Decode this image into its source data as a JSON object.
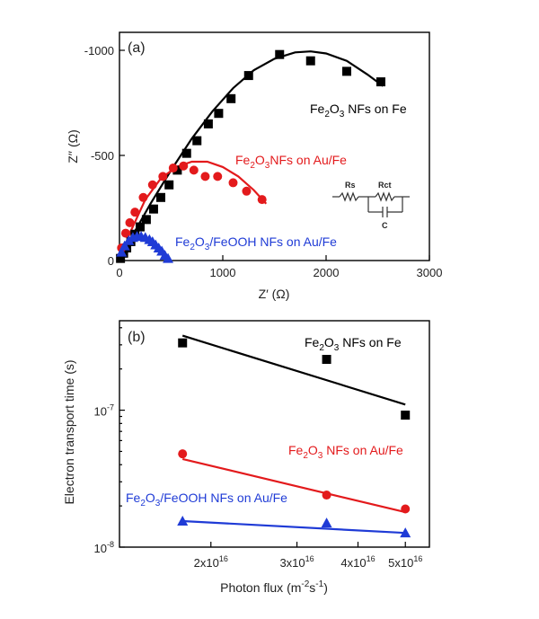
{
  "chart_data": [
    {
      "type": "scatter",
      "panel_label": "(a)",
      "xlabel": "Z′ (Ω)",
      "ylabel": "Z′′ (Ω)",
      "xlim": [
        0,
        3000
      ],
      "ylim": [
        0,
        -1000
      ],
      "x_ticks": [
        "0",
        "1000",
        "2000",
        "3000"
      ],
      "y_ticks": [
        "0",
        "-500",
        "-1000"
      ],
      "grid": false,
      "series": [
        {
          "name": "Fe2O3 NFs on Fe",
          "label_parts": {
            "a": "Fe",
            "sub": "2",
            "b": "O",
            "sub2": "3",
            "c": " NFs on Fe"
          },
          "color": "#000000",
          "marker": "square",
          "points": [
            [
              10,
              -10
            ],
            [
              40,
              -35
            ],
            [
              70,
              -60
            ],
            [
              110,
              -90
            ],
            [
              150,
              -125
            ],
            [
              200,
              -160
            ],
            [
              260,
              -195
            ],
            [
              330,
              -245
            ],
            [
              400,
              -300
            ],
            [
              480,
              -360
            ],
            [
              560,
              -430
            ],
            [
              650,
              -510
            ],
            [
              750,
              -570
            ],
            [
              860,
              -650
            ],
            [
              960,
              -700
            ],
            [
              1080,
              -770
            ],
            [
              1250,
              -880
            ],
            [
              1550,
              -980
            ],
            [
              1850,
              -950
            ],
            [
              2200,
              -900
            ],
            [
              2530,
              -850
            ]
          ],
          "fit": [
            [
              0,
              0
            ],
            [
              150,
              -140
            ],
            [
              300,
              -270
            ],
            [
              500,
              -430
            ],
            [
              700,
              -580
            ],
            [
              900,
              -710
            ],
            [
              1100,
              -820
            ],
            [
              1300,
              -905
            ],
            [
              1500,
              -960
            ],
            [
              1700,
              -990
            ],
            [
              1850,
              -995
            ],
            [
              2000,
              -985
            ],
            [
              2200,
              -950
            ],
            [
              2400,
              -885
            ],
            [
              2550,
              -830
            ]
          ]
        },
        {
          "name": "Fe2O3NFs on Au/Fe",
          "label_parts": {
            "a": "Fe",
            "sub": "2",
            "b": "O",
            "sub2": "3",
            "c": "NFs on Au/Fe"
          },
          "color": "#e31a1c",
          "marker": "circle",
          "points": [
            [
              20,
              -60
            ],
            [
              60,
              -130
            ],
            [
              100,
              -180
            ],
            [
              150,
              -230
            ],
            [
              230,
              -300
            ],
            [
              320,
              -360
            ],
            [
              420,
              -400
            ],
            [
              520,
              -440
            ],
            [
              620,
              -450
            ],
            [
              720,
              -430
            ],
            [
              830,
              -400
            ],
            [
              950,
              -400
            ],
            [
              1100,
              -370
            ],
            [
              1230,
              -330
            ],
            [
              1380,
              -290
            ]
          ],
          "fit": [
            [
              0,
              0
            ],
            [
              100,
              -130
            ],
            [
              250,
              -290
            ],
            [
              400,
              -390
            ],
            [
              550,
              -445
            ],
            [
              700,
              -470
            ],
            [
              850,
              -470
            ],
            [
              1000,
              -445
            ],
            [
              1150,
              -400
            ],
            [
              1300,
              -335
            ],
            [
              1420,
              -270
            ]
          ]
        },
        {
          "name": "Fe2O3/FeOOH NFs on Au/Fe",
          "label_parts": {
            "a": "Fe",
            "sub": "2",
            "b": "O",
            "sub2": "3",
            "c": "/FeOOH NFs on Au/Fe"
          },
          "color": "#1f3bd6",
          "marker": "triangle",
          "points": [
            [
              20,
              -40
            ],
            [
              50,
              -70
            ],
            [
              90,
              -95
            ],
            [
              130,
              -110
            ],
            [
              170,
              -115
            ],
            [
              210,
              -115
            ],
            [
              250,
              -110
            ],
            [
              290,
              -100
            ],
            [
              320,
              -90
            ],
            [
              350,
              -75
            ],
            [
              380,
              -60
            ],
            [
              410,
              -45
            ],
            [
              440,
              -25
            ],
            [
              470,
              -10
            ]
          ],
          "fit": [
            [
              0,
              0
            ],
            [
              60,
              -60
            ],
            [
              120,
              -95
            ],
            [
              180,
              -110
            ],
            [
              240,
              -112
            ],
            [
              300,
              -100
            ],
            [
              360,
              -75
            ],
            [
              420,
              -40
            ],
            [
              480,
              0
            ]
          ]
        }
      ],
      "circuit": {
        "rs": "Rs",
        "rct": "Rct",
        "c": "C"
      }
    },
    {
      "type": "scatter",
      "panel_label": "(b)",
      "xlabel_parts": {
        "a": "Photon flux (m",
        "sup1": "-2",
        "b": "s",
        "sup2": "-1",
        "c": ")"
      },
      "ylabel": "Electron transport time (s)",
      "xscale": "log",
      "yscale": "log",
      "xlim": [
        1.3e+16,
        5.6e+16
      ],
      "ylim": [
        1e-08,
        4.5e-07
      ],
      "x_ticks": [
        {
          "value": 2e+16,
          "mant": "2x10",
          "exp": "16"
        },
        {
          "value": 3e+16,
          "mant": "3x10",
          "exp": "16"
        },
        {
          "value": 4e+16,
          "mant": "4x10",
          "exp": "16"
        },
        {
          "value": 5e+16,
          "mant": "5x10",
          "exp": "16"
        }
      ],
      "y_ticks": [
        {
          "value": 1e-08,
          "mant": "10",
          "exp": "-8"
        },
        {
          "value": 1e-07,
          "mant": "10",
          "exp": "-7"
        }
      ],
      "grid": false,
      "series": [
        {
          "name": "Fe2O3 NFs on Fe",
          "label_parts": {
            "a": "Fe",
            "sub": "2",
            "b": "O",
            "sub2": "3",
            "c": " NFs on Fe"
          },
          "color": "#000000",
          "marker": "square",
          "points": [
            [
              1.75e+16,
              3.1e-07
            ],
            [
              3.45e+16,
              2.35e-07
            ],
            [
              5e+16,
              9.2e-08
            ]
          ],
          "fit": [
            [
              1.75e+16,
              3.5e-07
            ],
            [
              5e+16,
              1.1e-07
            ]
          ]
        },
        {
          "name": "Fe2O3 NFs on Au/Fe",
          "label_parts": {
            "a": "Fe",
            "sub": "2",
            "b": "O",
            "sub2": "3",
            "c": " NFs on Au/Fe"
          },
          "color": "#e31a1c",
          "marker": "circle",
          "points": [
            [
              1.75e+16,
              4.8e-08
            ],
            [
              3.45e+16,
              2.4e-08
            ],
            [
              5e+16,
              1.9e-08
            ]
          ],
          "fit": [
            [
              1.75e+16,
              4.4e-08
            ],
            [
              5e+16,
              1.8e-08
            ]
          ]
        },
        {
          "name": "Fe2O3/FeOOH NFs on Au/Fe",
          "label_parts": {
            "a": "Fe",
            "sub": "2",
            "b": "O",
            "sub2": "3",
            "c": "/FeOOH NFs on Au/Fe"
          },
          "color": "#1f3bd6",
          "marker": "triangle",
          "points": [
            [
              1.75e+16,
              1.55e-08
            ],
            [
              3.45e+16,
              1.5e-08
            ],
            [
              5e+16,
              1.27e-08
            ]
          ],
          "fit": [
            [
              1.75e+16,
              1.55e-08
            ],
            [
              5e+16,
              1.27e-08
            ]
          ]
        }
      ]
    }
  ]
}
